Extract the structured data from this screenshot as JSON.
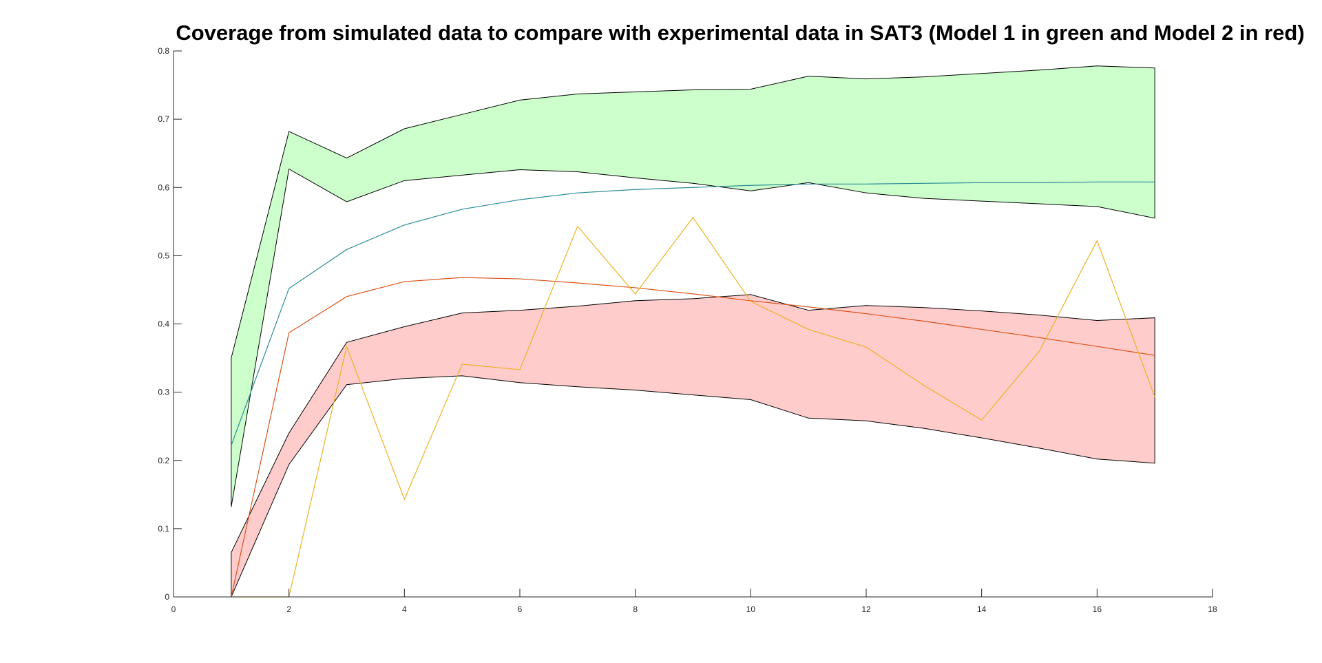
{
  "chart_data": {
    "type": "area",
    "title": "Coverage from simulated data to compare with experimental data in SAT3 (Model 1 in green and Model 2 in red)",
    "xlabel": "",
    "ylabel": "",
    "xlim": [
      0,
      18
    ],
    "ylim": [
      0,
      0.8
    ],
    "x_ticks": [
      0,
      2,
      4,
      6,
      8,
      10,
      12,
      14,
      16,
      18
    ],
    "y_ticks": [
      0,
      0.1,
      0.2,
      0.3,
      0.4,
      0.5,
      0.6,
      0.7,
      0.8
    ],
    "x_tick_labels": [
      "0",
      "2",
      "4",
      "6",
      "8",
      "10",
      "12",
      "14",
      "16",
      "18"
    ],
    "y_tick_labels": [
      "0",
      "0.1",
      "0.2",
      "0.3",
      "0.4",
      "0.5",
      "0.6",
      "0.7",
      "0.8"
    ],
    "grid": false,
    "x": [
      1,
      2,
      3,
      4,
      5,
      6,
      7,
      8,
      9,
      10,
      11,
      12,
      13,
      14,
      15,
      16,
      17
    ],
    "bands": [
      {
        "model": "Model 1",
        "fill_color": "#ccffcc",
        "upper": [
          0.35,
          0.682,
          0.643,
          0.686,
          0.707,
          0.728,
          0.737,
          0.74,
          0.743,
          0.744,
          0.763,
          0.759,
          0.762,
          0.767,
          0.772,
          0.778,
          0.775
        ],
        "lower": [
          0.132,
          0.627,
          0.579,
          0.61,
          0.618,
          0.626,
          0.623,
          0.614,
          0.606,
          0.595,
          0.607,
          0.592,
          0.584,
          0.58,
          0.576,
          0.572,
          0.555
        ]
      },
      {
        "model": "Model 2",
        "fill_color": "#ffcccc",
        "upper": [
          0.065,
          0.24,
          0.373,
          0.396,
          0.416,
          0.42,
          0.426,
          0.434,
          0.437,
          0.443,
          0.42,
          0.427,
          0.424,
          0.419,
          0.413,
          0.405,
          0.409
        ],
        "lower": [
          0.0,
          0.194,
          0.311,
          0.32,
          0.324,
          0.314,
          0.308,
          0.303,
          0.296,
          0.289,
          0.262,
          0.258,
          0.247,
          0.233,
          0.218,
          0.202,
          0.196
        ]
      }
    ],
    "overlap_color": "#d4caa0",
    "band_edge_color": "#000000",
    "series": [
      {
        "model": "Model 1",
        "role": "mean",
        "color": "#2a8c96",
        "values": [
          0.222,
          0.452,
          0.509,
          0.545,
          0.568,
          0.582,
          0.592,
          0.597,
          0.6,
          0.603,
          0.605,
          0.605,
          0.606,
          0.607,
          0.607,
          0.608,
          0.608
        ]
      },
      {
        "model": "Model 2",
        "role": "mean",
        "color": "#d95319",
        "values": [
          0.0,
          0.387,
          0.44,
          0.462,
          0.468,
          0.466,
          0.46,
          0.453,
          0.444,
          0.434,
          0.425,
          0.415,
          0.404,
          0.392,
          0.38,
          0.367,
          0.354
        ]
      },
      {
        "model": "Experimental",
        "role": "experimental",
        "color": "#edb120",
        "values": [
          0.0,
          0.0,
          0.367,
          0.143,
          0.341,
          0.333,
          0.543,
          0.444,
          0.556,
          0.433,
          0.392,
          0.366,
          0.31,
          0.259,
          0.36,
          0.522,
          0.293
        ]
      }
    ]
  }
}
